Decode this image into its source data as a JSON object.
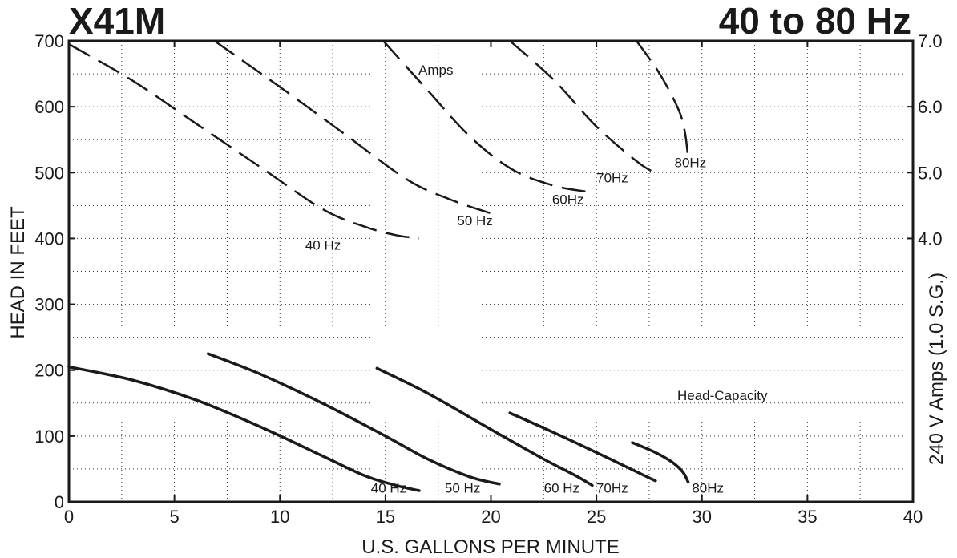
{
  "chart_data": {
    "type": "line",
    "title_left": "X41M",
    "title_right": "40 to 80 Hz",
    "xlabel": "U.S. GALLONS PER MINUTE",
    "ylabel_left": "HEAD IN FEET",
    "ylabel_right": "240 V Amps (1.0 S.G.)",
    "xlim": [
      0,
      40
    ],
    "ylim_left": [
      0,
      700
    ],
    "ylim_right": [
      0,
      7.0
    ],
    "grid": "dotted",
    "x_ticks": [
      "0",
      "5",
      "10",
      "15",
      "20",
      "25",
      "30",
      "35",
      "40"
    ],
    "y_left_ticks": [
      "0",
      "100",
      "200",
      "300",
      "400",
      "500",
      "600",
      "700"
    ],
    "y_right_ticks": [
      "4.0",
      "5.0",
      "6.0",
      "7.0"
    ],
    "annotations": [
      "Amps",
      "Head-Capacity"
    ],
    "head_capacity_series": [
      {
        "name": "40 Hz",
        "x": [
          0,
          3,
          6,
          9,
          12,
          14,
          15.5,
          16.6
        ],
        "y": [
          205,
          185,
          155,
          115,
          70,
          40,
          25,
          17
        ]
      },
      {
        "name": "50 Hz",
        "x": [
          6.6,
          9,
          12,
          15,
          17,
          19,
          20.4
        ],
        "y": [
          225,
          195,
          150,
          100,
          65,
          38,
          27
        ]
      },
      {
        "name": "60 Hz",
        "x": [
          14.6,
          17,
          20,
          22.5,
          24,
          24.8
        ],
        "y": [
          203,
          165,
          110,
          65,
          40,
          25
        ]
      },
      {
        "name": "70Hz",
        "x": [
          20.9,
          23,
          25,
          26.5,
          27.4,
          27.8
        ],
        "y": [
          135,
          105,
          75,
          52,
          38,
          32
        ]
      },
      {
        "name": "80Hz",
        "x": [
          26.7,
          27.8,
          28.6,
          29.1,
          29.35
        ],
        "y": [
          90,
          75,
          60,
          45,
          30
        ]
      }
    ],
    "amps_series": [
      {
        "name": "40 Hz",
        "x": [
          0,
          3,
          6,
          9,
          12,
          14,
          15.5,
          16.6
        ],
        "y": [
          6.95,
          6.4,
          5.75,
          5.1,
          4.45,
          4.18,
          4.05,
          4.0
        ]
      },
      {
        "name": "50 Hz",
        "x": [
          6.9,
          10,
          13,
          16,
          18,
          20
        ],
        "y": [
          7.0,
          6.3,
          5.6,
          4.9,
          4.6,
          4.38
        ]
      },
      {
        "name": "60Hz",
        "x": [
          14.9,
          17,
          19,
          21,
          23,
          24.8
        ],
        "y": [
          7.0,
          6.25,
          5.55,
          5.05,
          4.8,
          4.7
        ]
      },
      {
        "name": "70Hz",
        "x": [
          20.9,
          23,
          25,
          27,
          27.9
        ],
        "y": [
          7.0,
          6.4,
          5.7,
          5.15,
          4.98
        ]
      },
      {
        "name": "80Hz",
        "x": [
          26.9,
          28,
          28.9,
          29.2,
          29.35
        ],
        "y": [
          7.0,
          6.5,
          5.95,
          5.6,
          5.2
        ]
      }
    ]
  }
}
